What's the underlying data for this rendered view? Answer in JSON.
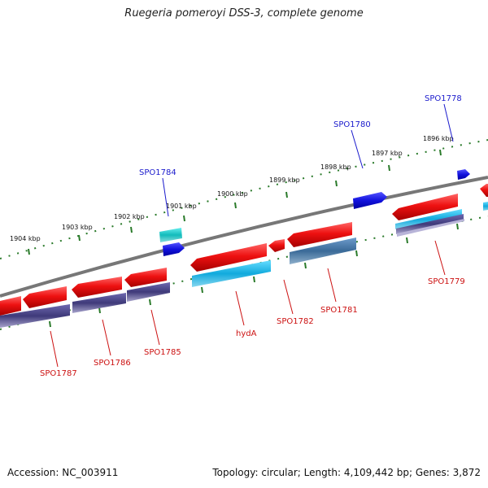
{
  "title": "Ruegeria pomeroyi DSS-3, complete genome",
  "accession_text": "Accession: NC_003911",
  "summary_text": "Topology: circular; Length: 4,109,442 bp; Genes: 3,872",
  "scale_labels": [
    "1904 kbp",
    "1903 kbp",
    "1902 kbp",
    "1901 kbp",
    "1900 kbp",
    "1899 kbp",
    "1898 kbp",
    "1897 kbp",
    "1896 kbp"
  ],
  "forward_labels": [
    "SPO1784",
    "SPO1780",
    "SPO1778"
  ],
  "reverse_labels": [
    "SPO1787",
    "SPO1786",
    "SPO1785",
    "hydA",
    "SPO1782",
    "SPO1781",
    "SPO1779"
  ],
  "colors": {
    "backbone": "#777777",
    "cds": "#ee1111",
    "gene_purple": "#3f3a7a",
    "gene_cyan": "#22bbee",
    "gene_steel": "#4a7aa8",
    "gene_teal": "#22c8c8",
    "forward_gene": "#1111dd",
    "forward_label": "#1a1acc",
    "reverse_label": "#cc1111",
    "tick": "#2a7a2a"
  }
}
